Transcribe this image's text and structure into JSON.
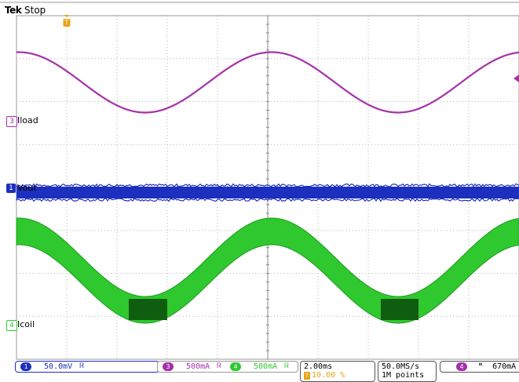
{
  "header": {
    "brand": "Tek",
    "run_status": "Stop"
  },
  "trigger_position_marker": "T",
  "channels": [
    {
      "num": "3",
      "name": "Iload",
      "color": "#a531a8"
    },
    {
      "num": "1",
      "name": "Vout",
      "color": "#1c2fbe"
    },
    {
      "num": "4",
      "name": "Icoil",
      "color": "#2fc82f"
    }
  ],
  "status_bar": {
    "ch1": {
      "num": "1",
      "scale": "50.0mV",
      "bw_symbol": "Ꮢ"
    },
    "ch3": {
      "num": "3",
      "scale": "500mA",
      "bw_symbol": "Ꮢ"
    },
    "ch4": {
      "num": "4",
      "scale": "500mA",
      "bw_symbol": "Ꮢ"
    },
    "timebase": {
      "scale": "2.00ms",
      "trigger_pos_icon": "T",
      "trigger_pos": "10.00 %"
    },
    "acquisition": {
      "sample_rate": "50.0MS/s",
      "record_length": "1M points"
    },
    "trigger": {
      "source": "4",
      "slope_icon": "falling-edge-icon",
      "slope_symbol": "ʺ",
      "level": "670mA"
    }
  },
  "colors": {
    "grid": "#b4b4b4",
    "ch1": "#1c2fbe",
    "ch3": "#a531a8",
    "ch4": "#2fc82f",
    "ch4_dark": "#0f5d0f",
    "trigger_marker": "#e8a317"
  }
}
